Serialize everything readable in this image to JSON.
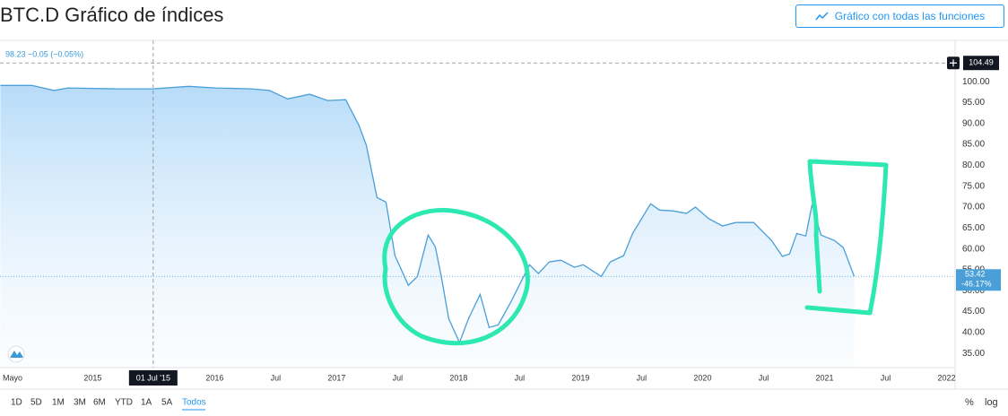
{
  "chart_data": {
    "type": "area",
    "title": "BTC.D Gráfico de índices",
    "legend_text": "98.23 −0.05 (−0.05%)",
    "change_label": "-46.17%",
    "series": [
      {
        "name": "BTC.D",
        "color": "#4a9fd8",
        "x": [
          2014.243,
          2014.5,
          2014.684,
          2014.794,
          2015.199,
          2015.493,
          2015.787,
          2016.008,
          2016.301,
          2016.449,
          2016.596,
          2016.779,
          2016.926,
          2017.074,
          2017.184,
          2017.243,
          2017.331,
          2017.404,
          2017.478,
          2017.588,
          2017.662,
          2017.75,
          2017.809,
          2017.86,
          2017.919,
          2018.007,
          2018.081,
          2018.176,
          2018.25,
          2018.324,
          2018.434,
          2018.581,
          2018.654,
          2018.743,
          2018.838,
          2018.949,
          2019.022,
          2019.169,
          2019.243,
          2019.353,
          2019.426,
          2019.574,
          2019.647,
          2019.757,
          2019.868,
          2019.941,
          2020.051,
          2020.162,
          2020.272,
          2020.419,
          2020.566,
          2020.654,
          2020.713,
          2020.772,
          2020.846,
          2020.897,
          2020.971,
          2021.081,
          2021.154,
          2021.243
        ],
        "values": [
          99.1,
          99.1,
          97.9,
          98.5,
          98.3,
          98.3,
          98.9,
          98.5,
          98.3,
          97.9,
          95.9,
          97.0,
          95.5,
          95.7,
          89.5,
          84.8,
          72.3,
          71.2,
          58.4,
          51.3,
          53.4,
          63.3,
          60.5,
          53.0,
          43.3,
          37.6,
          43.3,
          49.1,
          41.2,
          41.8,
          47.6,
          56.2,
          54.1,
          56.9,
          57.3,
          55.6,
          56.2,
          53.4,
          56.9,
          58.4,
          63.7,
          70.8,
          69.3,
          69.1,
          68.5,
          70.0,
          67.2,
          65.5,
          66.3,
          66.3,
          62.0,
          58.2,
          58.8,
          63.7,
          63.1,
          70.6,
          63.3,
          62.0,
          60.3,
          53.42
        ]
      }
    ],
    "xlim": [
      2014.24,
      2022.07
    ],
    "ylim": [
      31.6,
      109.9
    ],
    "xticks": [
      {
        "value": 2014.33,
        "label": "Mayo"
      },
      2015,
      2016,
      {
        "value": 2016.5,
        "label": "Jul"
      },
      2017,
      {
        "value": 2017.5,
        "label": "Jul"
      },
      2018,
      {
        "value": 2018.5,
        "label": "Jul"
      },
      2019,
      {
        "value": 2019.5,
        "label": "Jul"
      },
      2020,
      {
        "value": 2020.5,
        "label": "Jul"
      },
      2021,
      {
        "value": 2021.5,
        "label": "Jul"
      },
      2022
    ],
    "yticks": [
      {
        "value": 35,
        "label": "35.00"
      },
      {
        "value": 40,
        "label": "40.00"
      },
      {
        "value": 45,
        "label": "45.00"
      },
      {
        "value": 50,
        "label": "50.00"
      },
      {
        "value": 55,
        "label": "55.00"
      },
      {
        "value": 60,
        "label": "60.00"
      },
      {
        "value": 65,
        "label": "65.00"
      },
      {
        "value": 70,
        "label": "70.00"
      },
      {
        "value": 75,
        "label": "75.00"
      },
      {
        "value": 80,
        "label": "80.00"
      },
      {
        "value": 85,
        "label": "85.00"
      },
      {
        "value": 90,
        "label": "90.00"
      },
      {
        "value": 95,
        "label": "95.00"
      },
      {
        "value": 100,
        "label": "100.00"
      }
    ],
    "grid": false,
    "crosshair": {
      "x": {
        "value": 2015.496,
        "label": "01 Jul '15"
      },
      "y": 104.49
    }
  },
  "button": "Gráfico con todas las funciones",
  "toolbar": {
    "ranges": [
      "1D",
      "5D",
      "1M",
      "3M",
      "6M",
      "YTD",
      "1A",
      "5A",
      "Todos"
    ],
    "percent": "%",
    "log": "log"
  }
}
